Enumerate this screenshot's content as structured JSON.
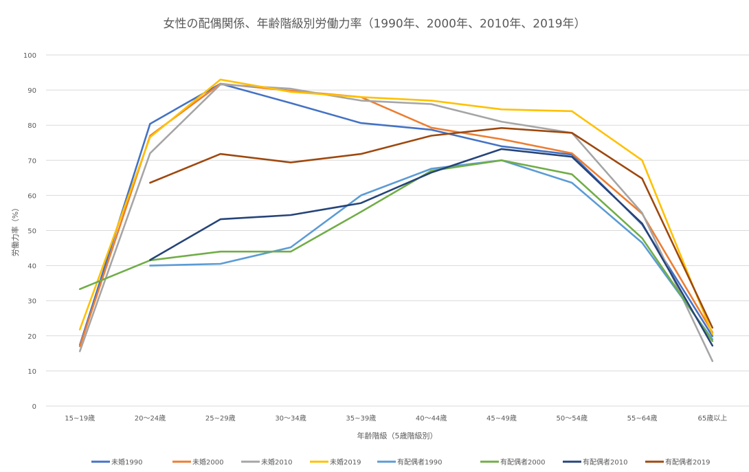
{
  "chart_data": {
    "type": "line",
    "title": "女性の配偶関係、年齢階級別労働力率（1990年、2000年、2010年、2019年）",
    "xlabel": "年齢階級（5歳階級別）",
    "ylabel": "労働力率（%）",
    "ylim": [
      0,
      100
    ],
    "yticks": [
      0,
      10,
      20,
      30,
      40,
      50,
      60,
      70,
      80,
      90,
      100
    ],
    "grid": true,
    "legend_position": "bottom",
    "categories": [
      "15~19歳",
      "20〜24歳",
      "25~29歳",
      "30〜34歳",
      "35~39歳",
      "40〜44歳",
      "45~49歳",
      "50〜54歳",
      "55~64歳",
      "65歳以上"
    ],
    "series": [
      {
        "name": "未婚1990",
        "color": "#4472C4",
        "values": [
          17.4,
          80.4,
          91.8,
          86.3,
          80.6,
          78.7,
          74.0,
          71.6,
          51.7,
          19.9
        ]
      },
      {
        "name": "未婚2000",
        "color": "#ED7D31",
        "values": [
          17.0,
          77.0,
          91.8,
          89.8,
          88.0,
          79.3,
          76.0,
          72.0,
          54.8,
          21.0
        ]
      },
      {
        "name": "未婚2010",
        "color": "#A5A5A5",
        "values": [
          15.6,
          72.0,
          91.6,
          90.4,
          87.0,
          86.0,
          81.0,
          77.8,
          55.0,
          12.8
        ]
      },
      {
        "name": "未婚2019",
        "color": "#FFC000",
        "values": [
          21.8,
          76.6,
          93.0,
          89.5,
          88.0,
          87.0,
          84.5,
          84.0,
          70.0,
          20.5
        ]
      },
      {
        "name": "有配偶者1990",
        "color": "#5B9BD5",
        "values": [
          null,
          40.0,
          40.5,
          45.2,
          60.0,
          67.6,
          70.0,
          63.6,
          46.5,
          19.0
        ]
      },
      {
        "name": "有配偶者2000",
        "color": "#70AD47",
        "values": [
          33.3,
          41.5,
          44.0,
          44.0,
          55.3,
          67.0,
          70.0,
          66.0,
          47.8,
          18.5
        ]
      },
      {
        "name": "有配偶者2010",
        "color": "#264478",
        "values": [
          null,
          41.6,
          53.2,
          54.4,
          57.8,
          66.5,
          73.2,
          71.0,
          52.0,
          17.2
        ]
      },
      {
        "name": "有配偶者2019",
        "color": "#9E480E",
        "values": [
          null,
          63.6,
          71.8,
          69.4,
          71.8,
          77.0,
          79.2,
          77.8,
          64.8,
          22.3
        ]
      }
    ]
  }
}
